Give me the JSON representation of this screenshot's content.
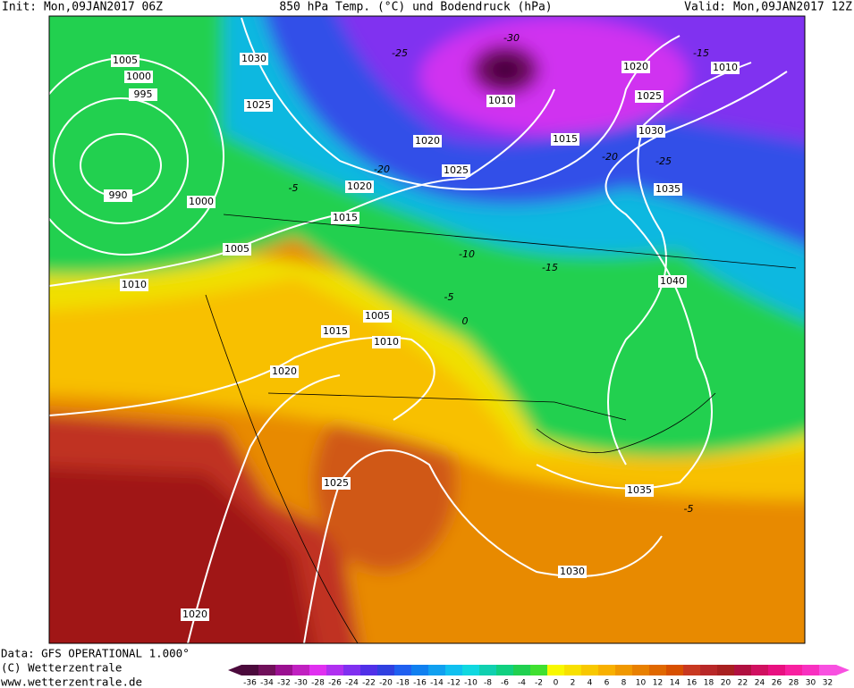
{
  "header": {
    "init": "Init: Mon,09JAN2017 06Z",
    "title": "850 hPa Temp. (°C) und Bodendruck (hPa)",
    "valid": "Valid: Mon,09JAN2017 12Z"
  },
  "isobar_labels": [
    "1005",
    "1000",
    "995",
    "990",
    "1000",
    "1005",
    "1010",
    "1030",
    "1025",
    "1020",
    "1025",
    "1020",
    "1015",
    "1005",
    "1015",
    "1010",
    "1020",
    "1025",
    "1020",
    "1030",
    "1035",
    "1040",
    "1035",
    "1030",
    "1025",
    "1020",
    "1010",
    "1015",
    "1010"
  ],
  "isotherm_labels": [
    "-25",
    "-30",
    "-20",
    "-15",
    "-20",
    "-25",
    "-15",
    "-10",
    "-5",
    "0",
    "-5",
    "-5"
  ],
  "footer": {
    "data": "Data: GFS OPERATIONAL 1.000°",
    "copyright": "(C) Wetterzentrale",
    "url": "www.wetterzentrale.de"
  },
  "colorbar": {
    "values": [
      -36,
      -34,
      -32,
      -30,
      -28,
      -26,
      -24,
      -22,
      -20,
      -18,
      -16,
      -14,
      -12,
      -10,
      -8,
      -6,
      -4,
      -2,
      0,
      2,
      4,
      6,
      8,
      10,
      12,
      14,
      16,
      18,
      20,
      22,
      24,
      26,
      28,
      30,
      32
    ],
    "colors": [
      "#4b0a3c",
      "#70105a",
      "#9a1090",
      "#c020c0",
      "#e030f0",
      "#b030f0",
      "#8030f0",
      "#5030e8",
      "#3040e0",
      "#2060f0",
      "#1080f0",
      "#10a0f0",
      "#10c0f0",
      "#10d8e0",
      "#10d0b0",
      "#10d080",
      "#20d050",
      "#40e030",
      "#f8f800",
      "#f8e000",
      "#f8c800",
      "#f8b000",
      "#f09800",
      "#e88000",
      "#e06800",
      "#d85000",
      "#c83820",
      "#b82828",
      "#a82020",
      "#b01040",
      "#d01060",
      "#e81080",
      "#f820a0",
      "#f830c0",
      "#f850e0"
    ]
  }
}
